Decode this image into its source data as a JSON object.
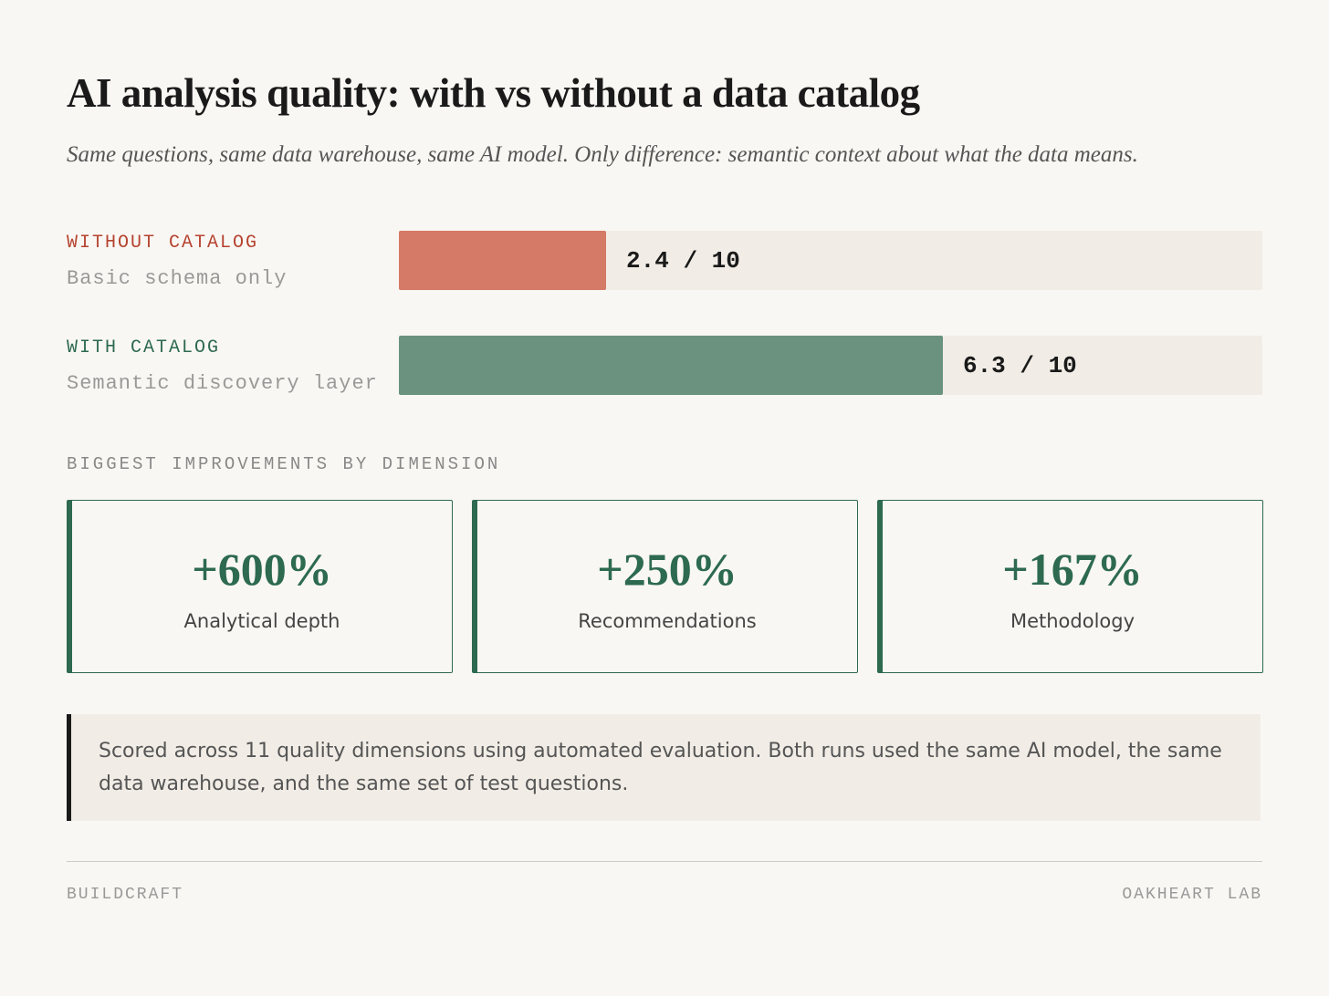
{
  "header": {
    "title": "AI analysis quality: with vs without a data catalog",
    "subtitle": "Same questions, same data warehouse, same AI model. Only difference: semantic context about what the data means."
  },
  "chart_data": {
    "type": "bar",
    "orientation": "horizontal",
    "categories": [
      "WITHOUT CATALOG",
      "WITH CATALOG"
    ],
    "descriptions": [
      "Basic schema only",
      "Semantic discovery layer"
    ],
    "values": [
      2.4,
      6.3
    ],
    "value_labels": [
      "2.4 / 10",
      "6.3 / 10"
    ],
    "colors": [
      "#d47a66",
      "#6a927e"
    ],
    "label_colors": [
      "#b5432f",
      "#2d6a4f"
    ],
    "xlim": [
      0,
      10
    ]
  },
  "improvements": {
    "heading": "BIGGEST IMPROVEMENTS BY DIMENSION",
    "items": [
      {
        "value": "+600%",
        "label": "Analytical depth"
      },
      {
        "value": "+250%",
        "label": "Recommendations"
      },
      {
        "value": "+167%",
        "label": "Methodology"
      }
    ]
  },
  "note": "Scored across 11 quality dimensions using automated evaluation. Both runs used the same AI model, the same data warehouse, and the same set of test questions.",
  "footer": {
    "left": "BUILDCRAFT",
    "right": "OAKHEART LAB"
  }
}
